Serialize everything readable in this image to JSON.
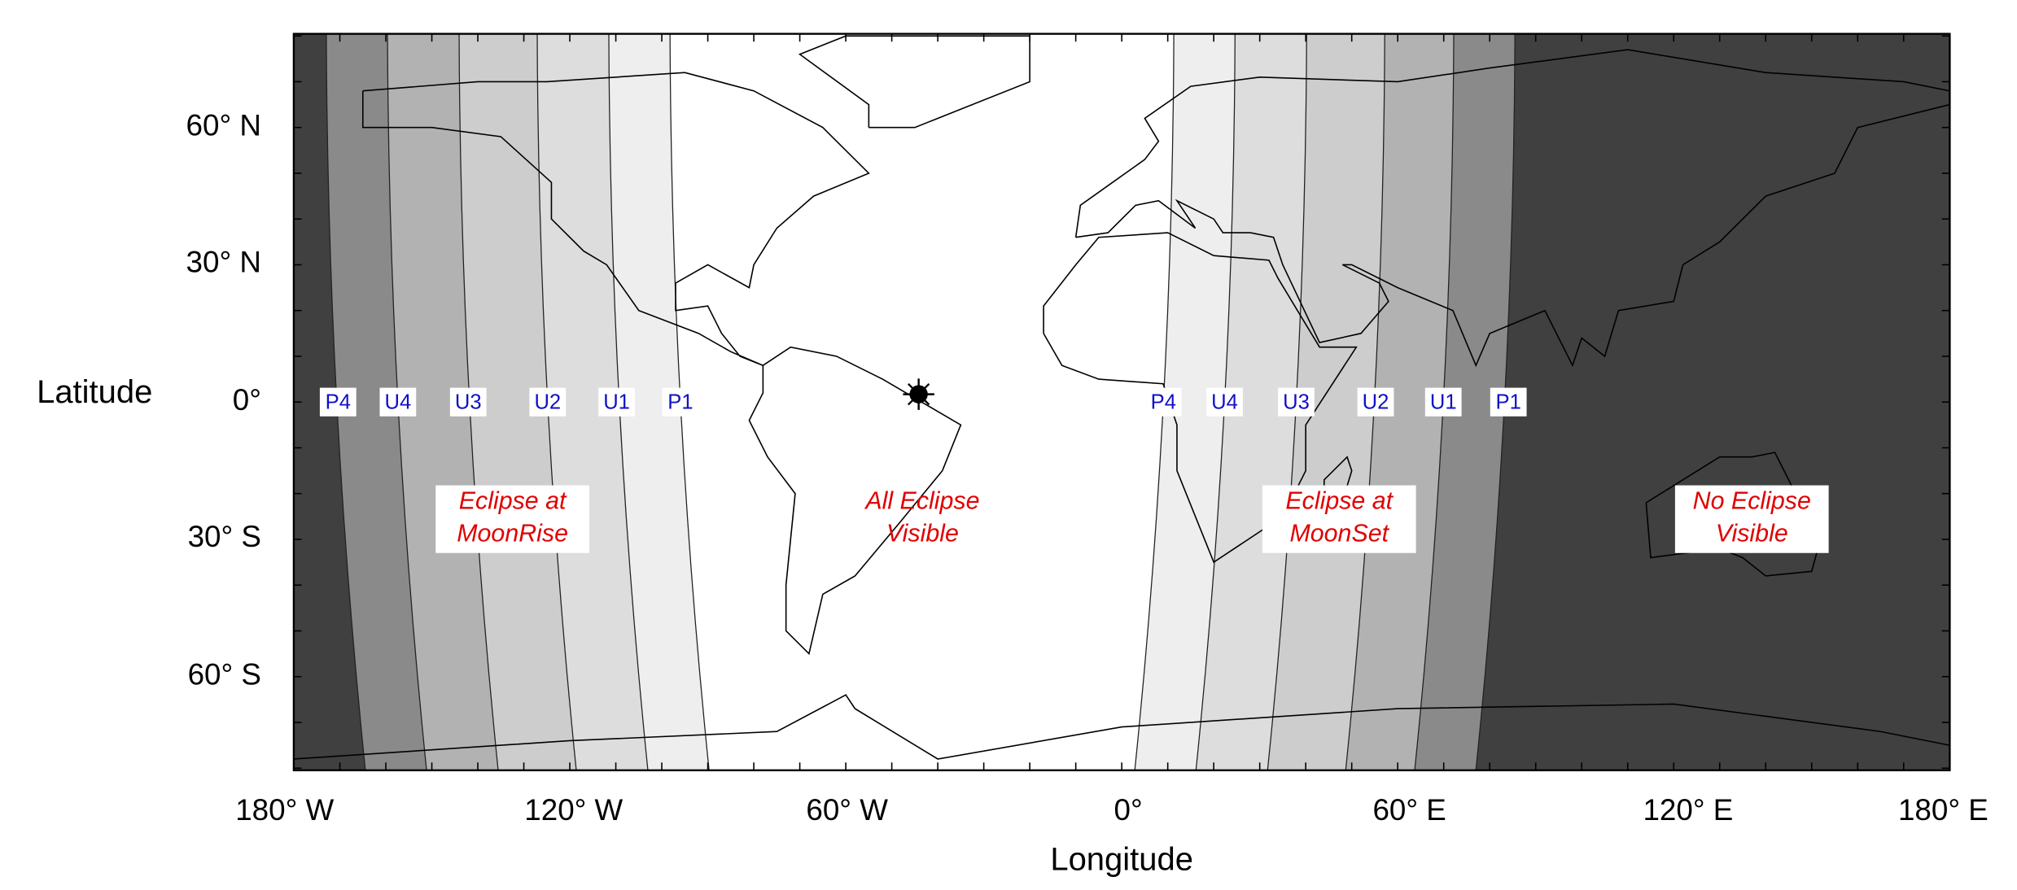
{
  "axes": {
    "y_label": "Latitude",
    "y_ticks": [
      "60° N",
      "30° N",
      "0°",
      "30° S",
      "60° S"
    ],
    "x_label": "Longitude",
    "x_ticks": [
      "180° W",
      "120° W",
      "60° W",
      "0°",
      "60° E",
      "120° E",
      "180° E"
    ]
  },
  "contacts_west": [
    "P4",
    "U4",
    "U3",
    "U2",
    "U1",
    "P1"
  ],
  "contacts_east": [
    "P4",
    "U4",
    "U3",
    "U2",
    "U1",
    "P1"
  ],
  "regions": [
    {
      "lines": [
        "Eclipse at",
        "MoonRise"
      ]
    },
    {
      "lines": [
        "All Eclipse",
        "Visible"
      ]
    },
    {
      "lines": [
        "Eclipse at",
        "MoonSet"
      ]
    },
    {
      "lines": [
        "No Eclipse",
        "Visible"
      ]
    }
  ]
}
